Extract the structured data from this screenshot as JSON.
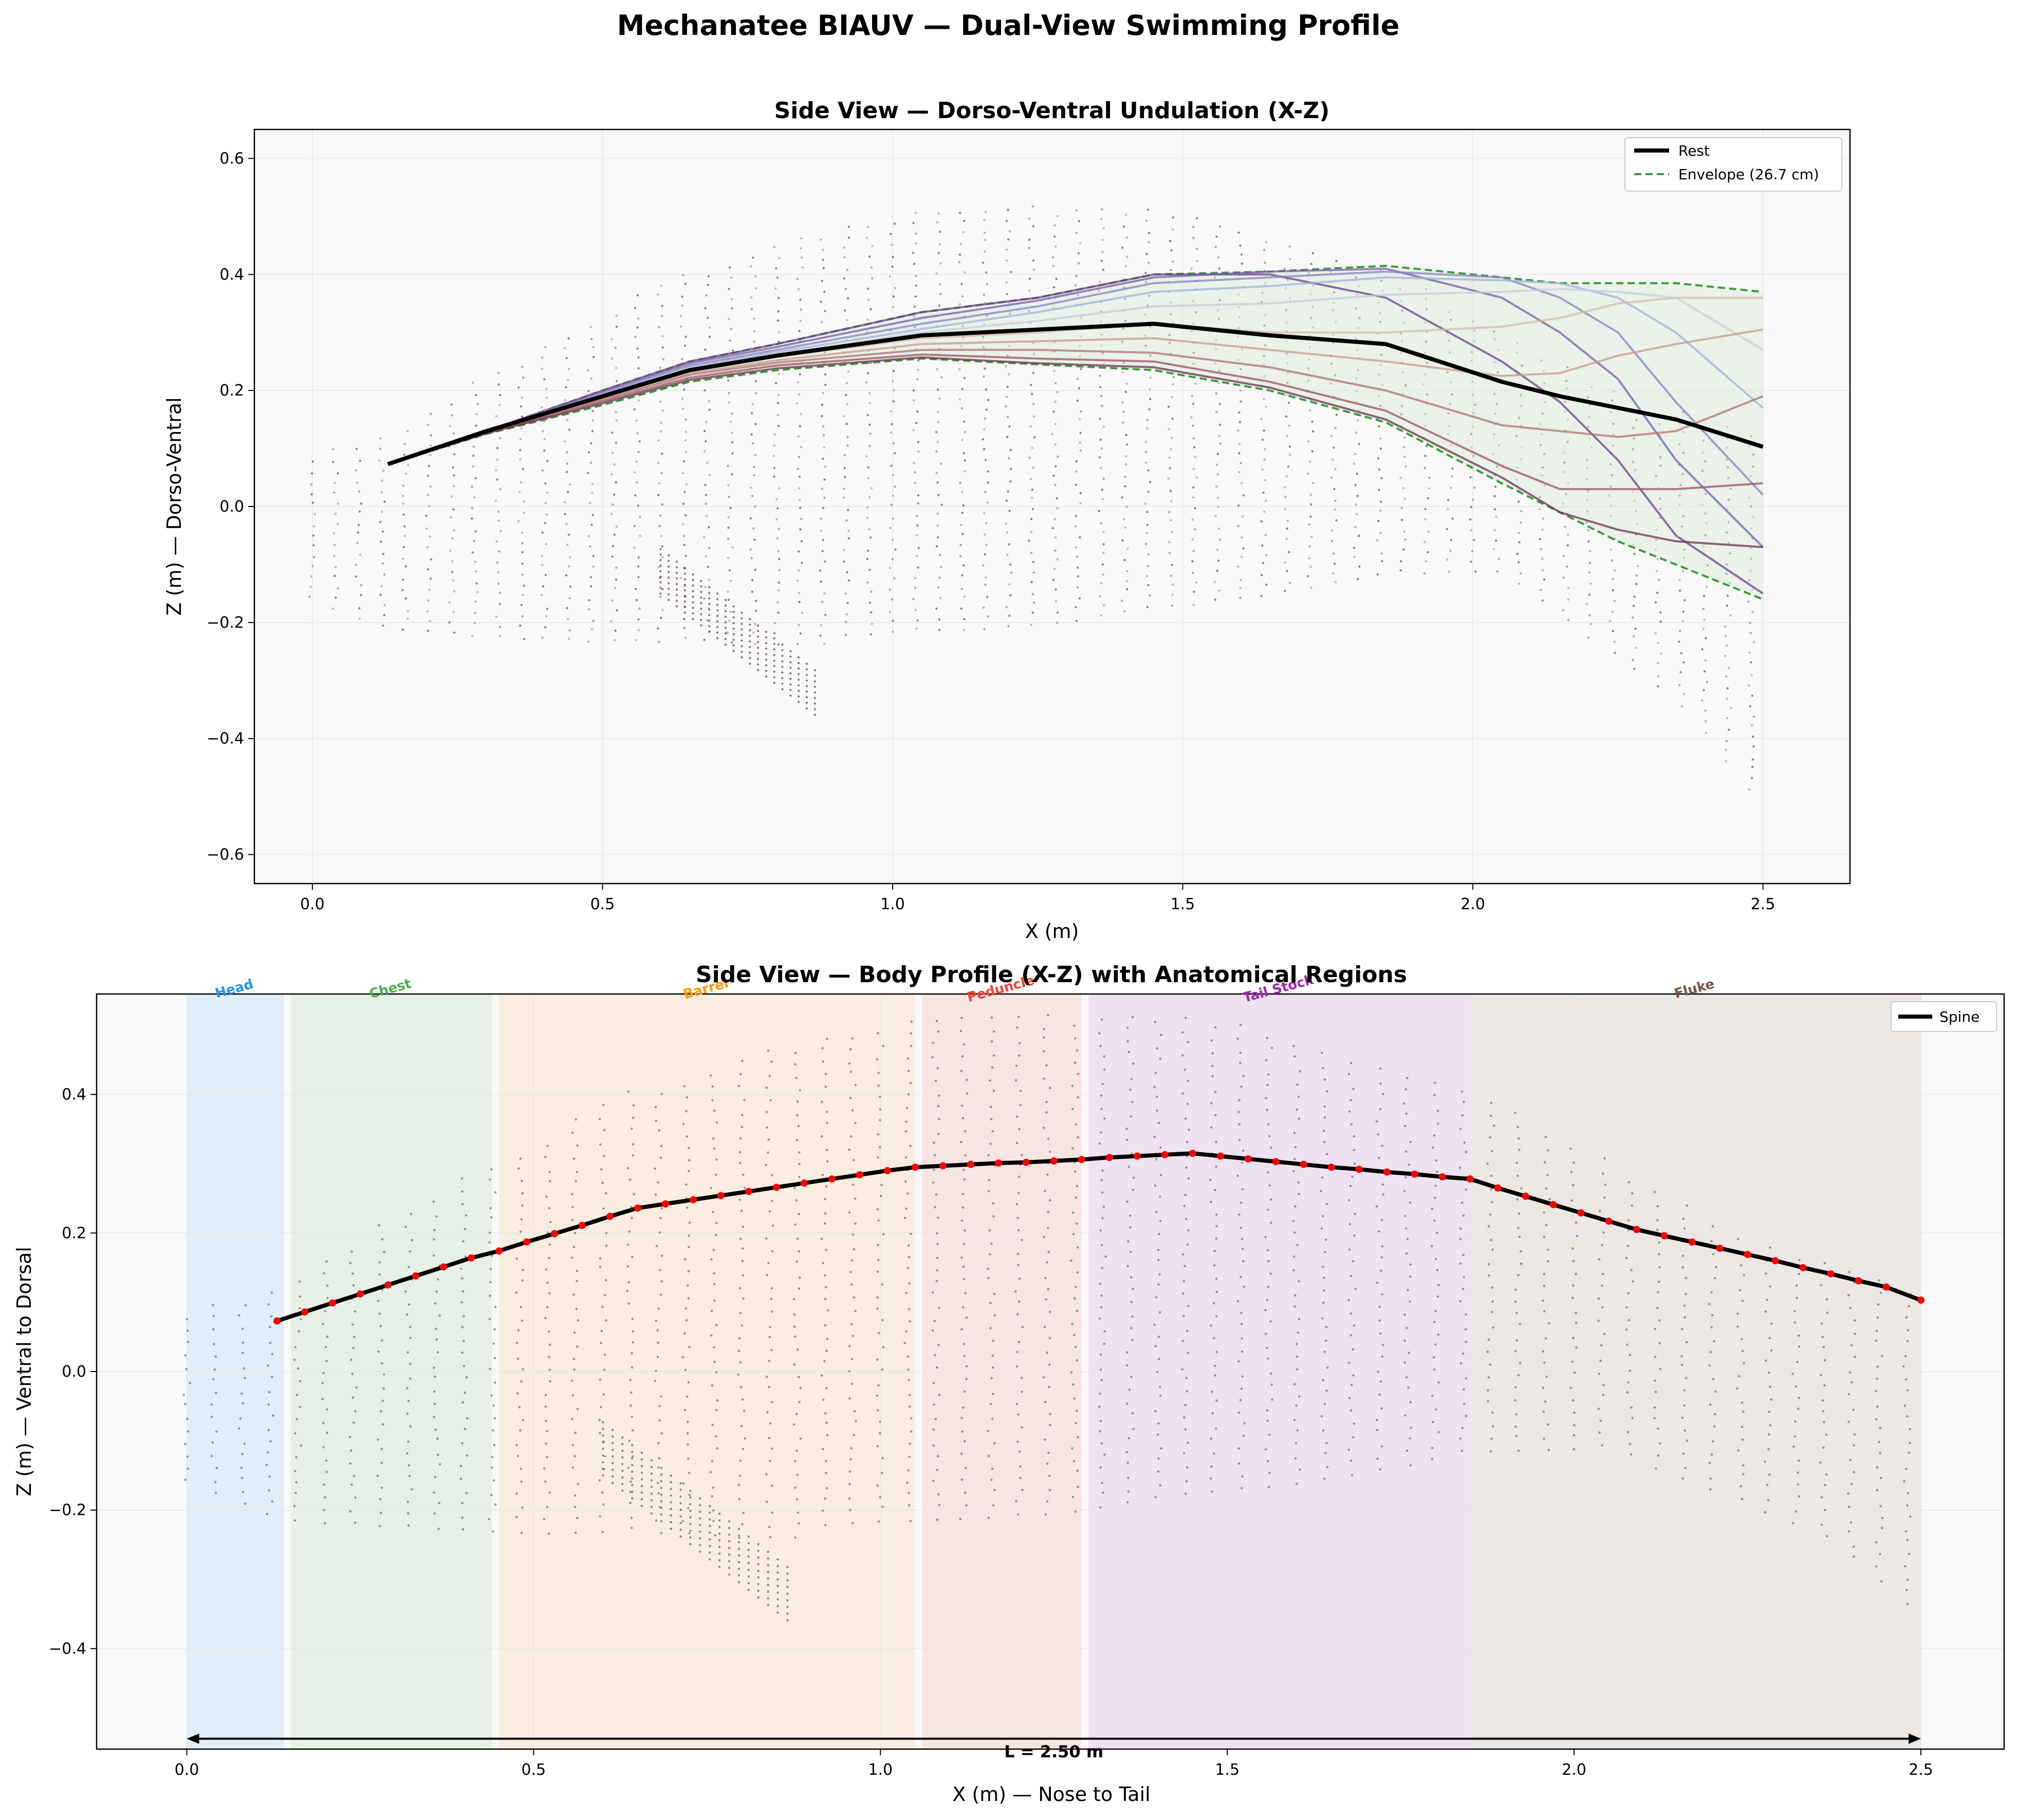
{
  "figure": {
    "suptitle": "Mechanatee BIAUV — Dual-View Swimming Profile"
  },
  "colors": {
    "spine": "#000000",
    "envelope": "#3a9a3a",
    "envelope_fill": "#d6e8d6",
    "spine_points": "#ff0000",
    "mesh_points": "#3c4a52",
    "plot_bg": "#f8f8f8"
  },
  "chart_data": [
    {
      "type": "line",
      "title": "Side View — Dorso-Ventral Undulation (X-Z)",
      "xlabel": "X (m)",
      "ylabel": "Z (m) — Dorso-Ventral",
      "xlim": [
        -0.1,
        2.65
      ],
      "ylim": [
        -0.65,
        0.65
      ],
      "xticks": [
        "0.0",
        "0.5",
        "1.0",
        "1.5",
        "2.0",
        "2.5"
      ],
      "yticks": [
        "0.6",
        "0.4",
        "0.2",
        "0.0",
        "−0.2",
        "−0.4",
        "−0.6"
      ],
      "grid": true,
      "legend_position": "top-right",
      "series": [
        {
          "name": "Rest",
          "x": [
            0.13,
            0.3,
            0.5,
            0.65,
            0.8,
            1.05,
            1.25,
            1.45,
            1.65,
            1.85,
            2.05,
            2.15,
            2.25,
            2.35,
            2.5
          ],
          "y": [
            0.073,
            0.13,
            0.19,
            0.235,
            0.26,
            0.295,
            0.305,
            0.315,
            0.295,
            0.28,
            0.215,
            0.19,
            0.17,
            0.15,
            0.103
          ]
        },
        {
          "name": "Envelope (26.7 cm)",
          "x": [
            0.13,
            0.3,
            0.5,
            0.65,
            0.8,
            1.05,
            1.25,
            1.45,
            1.65,
            1.85,
            2.05,
            2.15,
            2.25,
            2.35,
            2.5
          ],
          "upper": [
            0.073,
            0.13,
            0.2,
            0.25,
            0.28,
            0.335,
            0.36,
            0.4,
            0.405,
            0.415,
            0.395,
            0.385,
            0.385,
            0.385,
            0.37
          ],
          "lower": [
            0.073,
            0.125,
            0.175,
            0.215,
            0.235,
            0.255,
            0.245,
            0.235,
            0.2,
            0.145,
            0.04,
            -0.01,
            -0.06,
            -0.1,
            -0.16
          ]
        }
      ],
      "phase_curves": [
        {
          "y": [
            0.073,
            0.13,
            0.2,
            0.25,
            0.28,
            0.335,
            0.36,
            0.4,
            0.4,
            0.36,
            0.25,
            0.18,
            0.08,
            -0.05,
            -0.15
          ],
          "color": "#6a3d8a"
        },
        {
          "y": [
            0.073,
            0.13,
            0.198,
            0.247,
            0.275,
            0.325,
            0.355,
            0.395,
            0.405,
            0.41,
            0.36,
            0.3,
            0.22,
            0.08,
            -0.07
          ],
          "color": "#7a5aa8"
        },
        {
          "y": [
            0.073,
            0.13,
            0.195,
            0.243,
            0.27,
            0.315,
            0.345,
            0.385,
            0.395,
            0.405,
            0.395,
            0.36,
            0.3,
            0.18,
            0.02
          ],
          "color": "#8a80c0"
        },
        {
          "y": [
            0.073,
            0.13,
            0.193,
            0.24,
            0.266,
            0.306,
            0.335,
            0.37,
            0.38,
            0.395,
            0.39,
            0.385,
            0.36,
            0.3,
            0.17
          ],
          "color": "#9fb0d8"
        },
        {
          "y": [
            0.073,
            0.13,
            0.191,
            0.237,
            0.262,
            0.3,
            0.32,
            0.345,
            0.35,
            0.365,
            0.37,
            0.375,
            0.37,
            0.36,
            0.27
          ],
          "color": "#c4cfd8"
        },
        {
          "y": [
            0.073,
            0.13,
            0.189,
            0.234,
            0.258,
            0.29,
            0.3,
            0.315,
            0.3,
            0.3,
            0.31,
            0.325,
            0.35,
            0.36,
            0.36
          ],
          "color": "#d8b8a8"
        },
        {
          "y": [
            0.073,
            0.128,
            0.186,
            0.23,
            0.252,
            0.28,
            0.285,
            0.29,
            0.27,
            0.25,
            0.225,
            0.23,
            0.26,
            0.28,
            0.305
          ],
          "color": "#c89888"
        },
        {
          "y": [
            0.073,
            0.128,
            0.184,
            0.227,
            0.248,
            0.27,
            0.27,
            0.265,
            0.24,
            0.2,
            0.14,
            0.13,
            0.12,
            0.13,
            0.19
          ],
          "color": "#b07070"
        },
        {
          "y": [
            0.073,
            0.127,
            0.181,
            0.222,
            0.243,
            0.262,
            0.255,
            0.25,
            0.215,
            0.165,
            0.07,
            0.03,
            0.03,
            0.03,
            0.04
          ],
          "color": "#9a5060"
        },
        {
          "y": [
            0.073,
            0.126,
            0.178,
            0.218,
            0.238,
            0.257,
            0.247,
            0.24,
            0.205,
            0.15,
            0.05,
            -0.01,
            -0.04,
            -0.06,
            -0.07
          ],
          "color": "#6a3050"
        }
      ]
    },
    {
      "type": "line",
      "title": "Side View — Body Profile (X-Z) with Anatomical Regions",
      "xlabel": "X (m) — Nose to Tail",
      "ylabel": "Z (m) — Ventral to Dorsal",
      "xlim": [
        -0.13,
        2.62
      ],
      "ylim": [
        -0.545,
        0.545
      ],
      "xticks": [
        "0.0",
        "0.5",
        "1.0",
        "1.5",
        "2.0",
        "2.5"
      ],
      "yticks": [
        "0.4",
        "0.2",
        "0.0",
        "−0.2",
        "−0.4"
      ],
      "grid": true,
      "legend_position": "top-right",
      "regions": [
        {
          "label": "Head",
          "x0": 0.0,
          "x1": 0.14,
          "color": "#2196f3"
        },
        {
          "label": "Chest",
          "x0": 0.15,
          "x1": 0.44,
          "color": "#4caf50"
        },
        {
          "label": "Barrel",
          "x0": 0.45,
          "x1": 1.05,
          "color": "#ff9800"
        },
        {
          "label": "Peduncle",
          "x0": 1.06,
          "x1": 1.29,
          "color": "#f44336"
        },
        {
          "label": "Tail Stock",
          "x0": 1.3,
          "x1": 1.85,
          "color": "#9c27b0"
        },
        {
          "label": "Fluke",
          "x0": 1.85,
          "x1": 2.5,
          "color": "#795548"
        }
      ],
      "series": [
        {
          "name": "Spine",
          "x": [
            0.13,
            0.17,
            0.21,
            0.25,
            0.29,
            0.33,
            0.37,
            0.41,
            0.45,
            0.49,
            0.53,
            0.57,
            0.61,
            0.65,
            0.69,
            0.73,
            0.77,
            0.81,
            0.85,
            0.89,
            0.93,
            0.97,
            1.01,
            1.05,
            1.09,
            1.13,
            1.17,
            1.21,
            1.25,
            1.29,
            1.33,
            1.37,
            1.41,
            1.45,
            1.49,
            1.53,
            1.57,
            1.61,
            1.65,
            1.69,
            1.73,
            1.77,
            1.81,
            1.85,
            1.89,
            1.93,
            1.97,
            2.01,
            2.05,
            2.09,
            2.13,
            2.17,
            2.21,
            2.25,
            2.29,
            2.33,
            2.37,
            2.41,
            2.45,
            2.5
          ],
          "y": [
            0.073,
            0.086,
            0.099,
            0.112,
            0.125,
            0.138,
            0.151,
            0.164,
            0.174,
            0.187,
            0.199,
            0.211,
            0.224,
            0.236,
            0.242,
            0.248,
            0.254,
            0.26,
            0.266,
            0.272,
            0.278,
            0.284,
            0.29,
            0.295,
            0.297,
            0.299,
            0.301,
            0.302,
            0.304,
            0.306,
            0.309,
            0.311,
            0.313,
            0.315,
            0.311,
            0.307,
            0.303,
            0.299,
            0.295,
            0.292,
            0.288,
            0.285,
            0.281,
            0.278,
            0.265,
            0.253,
            0.241,
            0.229,
            0.217,
            0.205,
            0.196,
            0.187,
            0.178,
            0.169,
            0.16,
            0.15,
            0.141,
            0.131,
            0.122,
            0.103
          ]
        }
      ],
      "annotation": {
        "text": "L = 2.50 m",
        "x0": 0.0,
        "x1": 2.5,
        "y": -0.53
      }
    }
  ]
}
